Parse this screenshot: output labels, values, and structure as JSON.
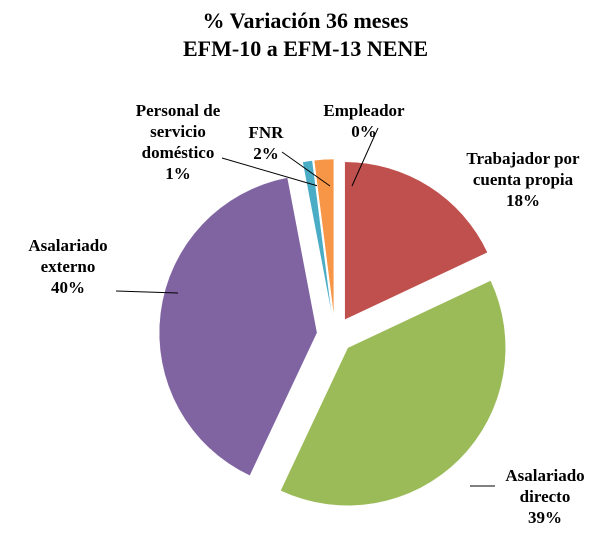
{
  "chart_data": {
    "type": "pie",
    "title": "% Variación 36 meses",
    "subtitle": "EFM-10 a EFM-13 NENE",
    "categories": [
      "Trabajador por cuenta propia",
      "Asalariado directo",
      "Asalariado externo",
      "Personal de servicio doméstico",
      "FNR",
      "Empleador"
    ],
    "values": [
      18,
      39,
      40,
      1,
      2,
      0
    ],
    "value_labels": [
      "18%",
      "39%",
      "40%",
      "1%",
      "2%",
      "0%"
    ],
    "colors": [
      "#c0504d",
      "#9bbb59",
      "#8064a2",
      "#4bacc6",
      "#f79646",
      "#4f81bd"
    ]
  }
}
